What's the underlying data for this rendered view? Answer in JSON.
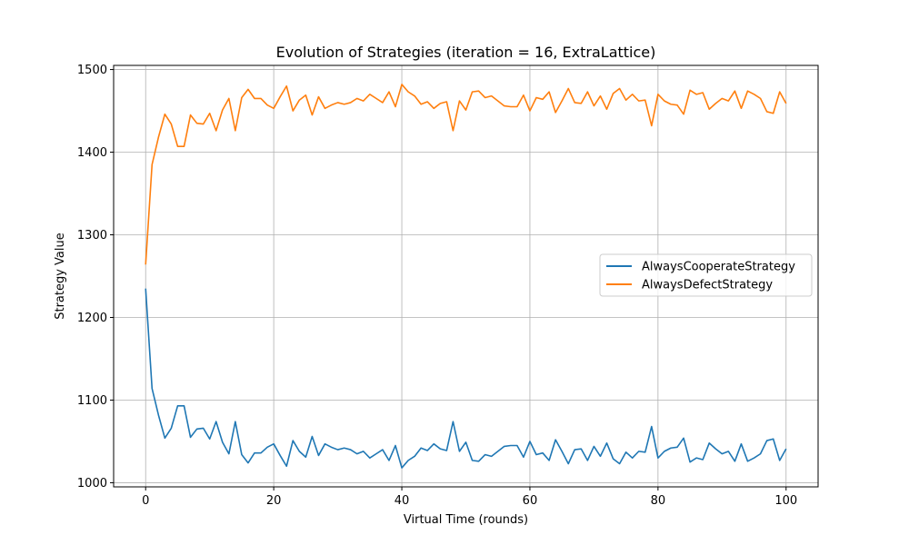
{
  "chart_data": {
    "type": "line",
    "title": "Evolution of Strategies (iteration = 16, ExtraLattice)",
    "xlabel": "Virtual Time (rounds)",
    "ylabel": "Strategy Value",
    "xlim": [
      -5,
      105
    ],
    "ylim": [
      995,
      1505
    ],
    "xticks": [
      0,
      20,
      40,
      60,
      80,
      100
    ],
    "yticks": [
      1000,
      1100,
      1200,
      1300,
      1400,
      1500
    ],
    "grid": true,
    "legend_position": "center-right",
    "x": [
      0,
      1,
      2,
      3,
      4,
      5,
      6,
      7,
      8,
      9,
      10,
      11,
      12,
      13,
      14,
      15,
      16,
      17,
      18,
      19,
      20,
      21,
      22,
      23,
      24,
      25,
      26,
      27,
      28,
      29,
      30,
      31,
      32,
      33,
      34,
      35,
      36,
      37,
      38,
      39,
      40,
      41,
      42,
      43,
      44,
      45,
      46,
      47,
      48,
      49,
      50,
      51,
      52,
      53,
      54,
      55,
      56,
      57,
      58,
      59,
      60,
      61,
      62,
      63,
      64,
      65,
      66,
      67,
      68,
      69,
      70,
      71,
      72,
      73,
      74,
      75,
      76,
      77,
      78,
      79,
      80,
      81,
      82,
      83,
      84,
      85,
      86,
      87,
      88,
      89,
      90,
      91,
      92,
      93,
      94,
      95,
      96,
      97,
      98,
      99,
      100
    ],
    "series": [
      {
        "name": "AlwaysCooperateStrategy",
        "color": "#1f77b4",
        "values": [
          1235,
          1114,
          1082,
          1054,
          1066,
          1093,
          1093,
          1055,
          1065,
          1066,
          1053,
          1074,
          1049,
          1035,
          1074,
          1034,
          1024,
          1036,
          1036,
          1043,
          1047,
          1033,
          1020,
          1051,
          1038,
          1031,
          1056,
          1033,
          1047,
          1043,
          1040,
          1042,
          1040,
          1035,
          1038,
          1030,
          1035,
          1040,
          1027,
          1045,
          1018,
          1027,
          1032,
          1042,
          1039,
          1047,
          1041,
          1039,
          1074,
          1038,
          1049,
          1027,
          1026,
          1034,
          1032,
          1038,
          1044,
          1045,
          1045,
          1031,
          1050,
          1034,
          1036,
          1027,
          1052,
          1038,
          1023,
          1040,
          1041,
          1027,
          1044,
          1032,
          1048,
          1029,
          1023,
          1037,
          1030,
          1038,
          1037,
          1068,
          1030,
          1038,
          1042,
          1043,
          1054,
          1025,
          1030,
          1028,
          1048,
          1041,
          1035,
          1038,
          1026,
          1047,
          1026,
          1030,
          1035,
          1051,
          1053,
          1027,
          1041
        ]
      },
      {
        "name": "AlwaysDefectStrategy",
        "color": "#ff7f0e",
        "values": [
          1264,
          1385,
          1418,
          1446,
          1434,
          1407,
          1407,
          1445,
          1435,
          1434,
          1447,
          1426,
          1451,
          1465,
          1426,
          1466,
          1476,
          1465,
          1465,
          1457,
          1453,
          1467,
          1480,
          1450,
          1463,
          1469,
          1445,
          1467,
          1453,
          1457,
          1460,
          1458,
          1460,
          1465,
          1462,
          1470,
          1465,
          1460,
          1473,
          1455,
          1482,
          1473,
          1468,
          1458,
          1461,
          1453,
          1459,
          1461,
          1426,
          1462,
          1451,
          1473,
          1474,
          1466,
          1468,
          1462,
          1456,
          1455,
          1455,
          1469,
          1450,
          1466,
          1464,
          1473,
          1448,
          1462,
          1477,
          1460,
          1459,
          1473,
          1456,
          1468,
          1452,
          1471,
          1477,
          1463,
          1470,
          1462,
          1463,
          1432,
          1470,
          1462,
          1458,
          1457,
          1446,
          1475,
          1470,
          1472,
          1452,
          1459,
          1465,
          1462,
          1474,
          1453,
          1474,
          1470,
          1465,
          1449,
          1447,
          1473,
          1459
        ]
      }
    ]
  }
}
